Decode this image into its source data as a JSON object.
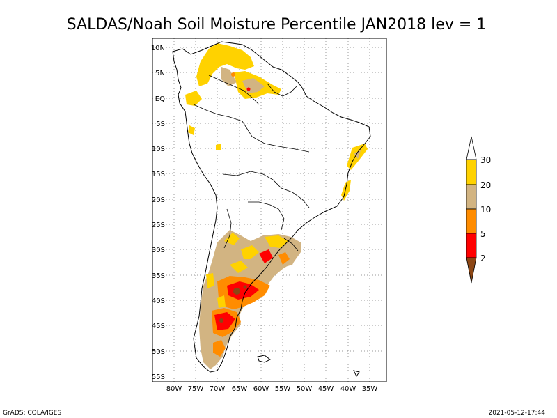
{
  "title": "SALDAS/Noah Soil Moisture Percentile JAN2018 lev = 1",
  "map": {
    "lat_ticks": [
      "10N",
      "5N",
      "EQ",
      "5S",
      "10S",
      "15S",
      "20S",
      "25S",
      "30S",
      "35S",
      "40S",
      "45S",
      "50S",
      "55S"
    ],
    "lon_ticks": [
      "80W",
      "75W",
      "70W",
      "65W",
      "60W",
      "55W",
      "50W",
      "45W",
      "40W",
      "35W"
    ]
  },
  "colorbar": {
    "labels": [
      "30",
      "20",
      "10",
      "5",
      "2"
    ],
    "colors": {
      "above_30": "#ffffff",
      "c20_30": "#ffd200",
      "c10_20": "#d2b482",
      "c5_10": "#ff8c00",
      "c2_5": "#ff0000",
      "below_2": "#8c4614"
    }
  },
  "footer": {
    "left": "GrADS: COLA/IGES",
    "right": "2021-05-12-17:44"
  }
}
